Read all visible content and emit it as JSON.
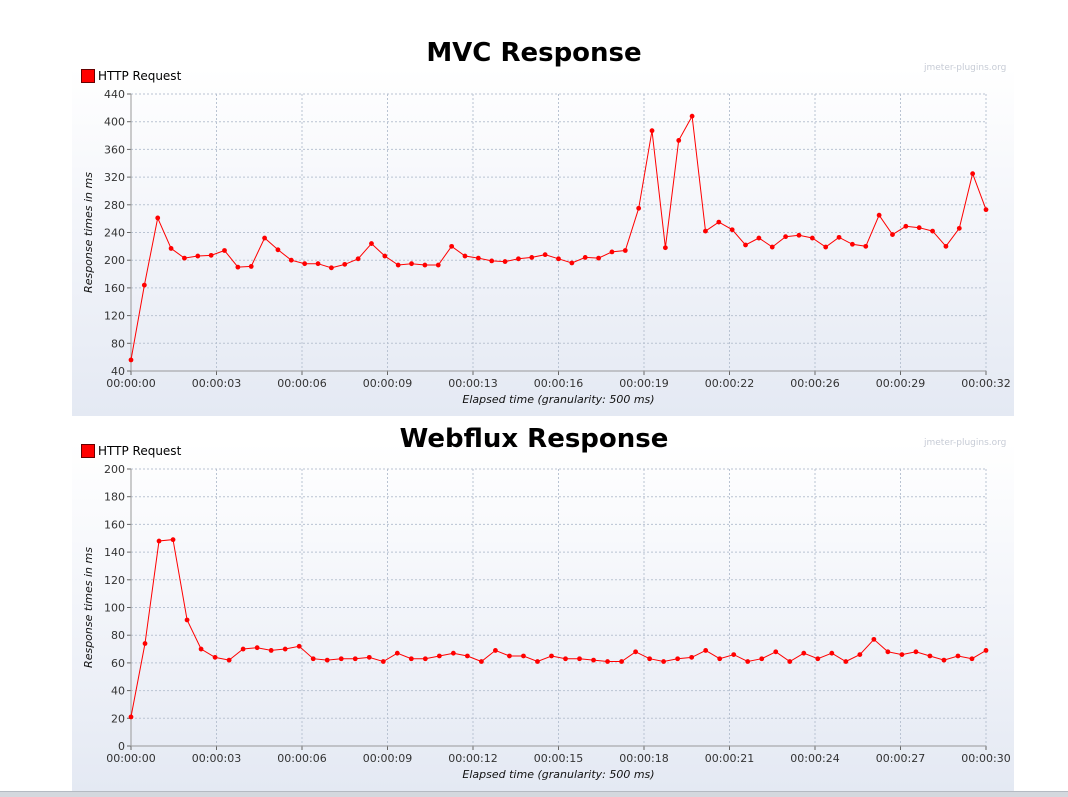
{
  "watermark": "jmeter-plugins.org",
  "series_color": "#ff0000",
  "chart_data": [
    {
      "type": "line",
      "title": "MVC Response",
      "legend": "HTTP Request",
      "legend_position": "top-left",
      "xlabel": "Elapsed time (granularity: 500 ms)",
      "ylabel": "Response times in ms",
      "ylim": [
        40,
        440
      ],
      "yticks": [
        "40",
        "80",
        "120",
        "160",
        "200",
        "240",
        "280",
        "320",
        "360",
        "400",
        "440"
      ],
      "xticks": [
        "00:00:00",
        "00:00:03",
        "00:00:06",
        "00:00:09",
        "00:00:13",
        "00:00:16",
        "00:00:19",
        "00:00:22",
        "00:00:26",
        "00:00:29",
        "00:00:32"
      ],
      "grid": true,
      "series": [
        {
          "name": "HTTP Request",
          "values": [
            56,
            164,
            261,
            217,
            203,
            206,
            207,
            214,
            190,
            191,
            232,
            215,
            200,
            195,
            195,
            189,
            194,
            202,
            224,
            206,
            193,
            195,
            193,
            193,
            220,
            206,
            203,
            199,
            198,
            202,
            204,
            208,
            202,
            196,
            204,
            203,
            212,
            214,
            275,
            387,
            218,
            373,
            408,
            242,
            255,
            244,
            222,
            232,
            219,
            234,
            236,
            232,
            219,
            233,
            223,
            220,
            265,
            237,
            249,
            247,
            242,
            220,
            246,
            325,
            273
          ]
        }
      ]
    },
    {
      "type": "line",
      "title": "Webflux Response",
      "legend": "HTTP Request",
      "legend_position": "top-left",
      "xlabel": "Elapsed time (granularity: 500 ms)",
      "ylabel": "Response times in ms",
      "ylim": [
        0,
        200
      ],
      "yticks": [
        "0",
        "20",
        "40",
        "60",
        "80",
        "100",
        "120",
        "140",
        "160",
        "180",
        "200"
      ],
      "xticks": [
        "00:00:00",
        "00:00:03",
        "00:00:06",
        "00:00:09",
        "00:00:12",
        "00:00:15",
        "00:00:18",
        "00:00:21",
        "00:00:24",
        "00:00:27",
        "00:00:30"
      ],
      "grid": true,
      "series": [
        {
          "name": "HTTP Request",
          "values": [
            21,
            74,
            148,
            149,
            91,
            70,
            64,
            62,
            70,
            71,
            69,
            70,
            72,
            63,
            62,
            63,
            63,
            64,
            61,
            67,
            63,
            63,
            65,
            67,
            65,
            61,
            69,
            65,
            65,
            61,
            65,
            63,
            63,
            62,
            61,
            61,
            68,
            63,
            61,
            63,
            64,
            69,
            63,
            66,
            61,
            63,
            68,
            61,
            67,
            63,
            67,
            61,
            66,
            77,
            68,
            66,
            68,
            65,
            62,
            65,
            63,
            69
          ]
        }
      ]
    }
  ]
}
